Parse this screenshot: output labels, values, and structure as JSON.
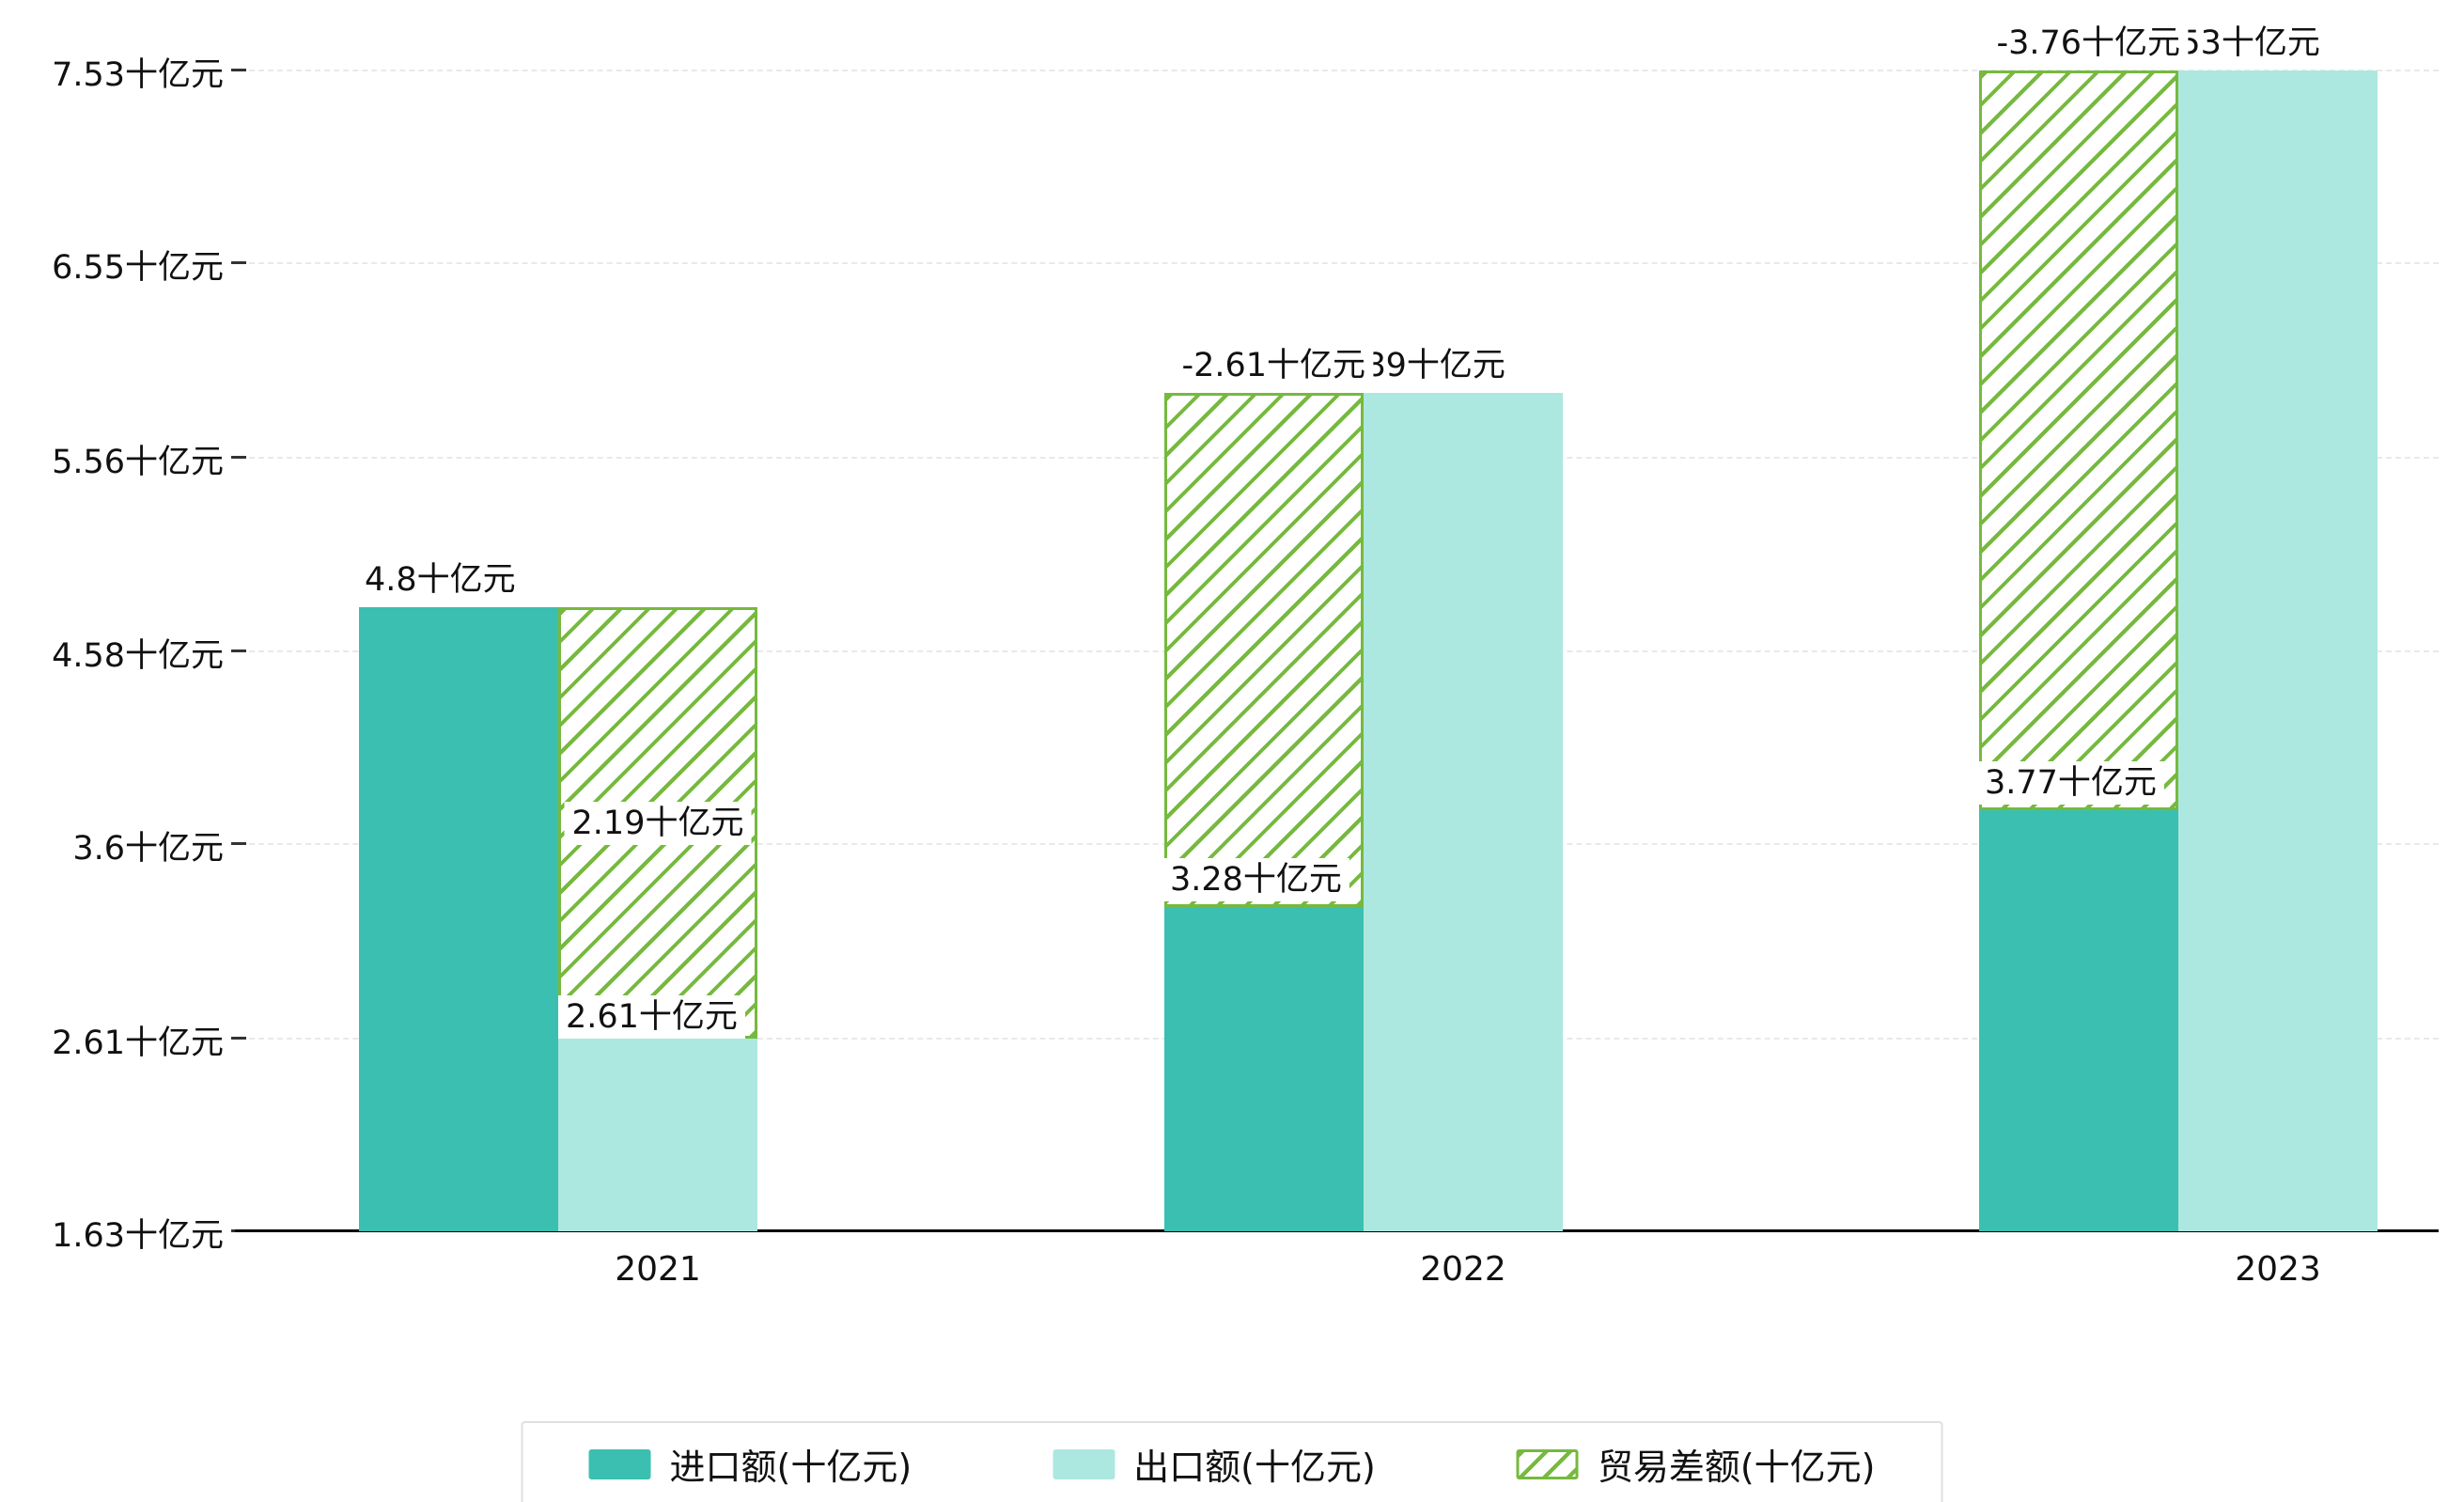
{
  "page": {
    "background": "#ffffff"
  },
  "chart_data": {
    "type": "bar",
    "title": "",
    "categories": [
      "2021",
      "2022",
      "2023"
    ],
    "series": [
      {
        "name": "进口额(十亿元)",
        "values": [
          4.8,
          3.28,
          3.77
        ],
        "labels": [
          "4.8十亿元",
          "3.28十亿元",
          "3.77十亿元"
        ],
        "color": "#3BBFB1",
        "style": "solid"
      },
      {
        "name": "出口额(十亿元)",
        "values": [
          2.61,
          5.89,
          7.53
        ],
        "labels": [
          "2.61十亿元",
          "5.89十亿元",
          "7.53十亿元"
        ],
        "color": "#ACE8E0",
        "style": "solid"
      },
      {
        "name": "贸易差额(十亿元)",
        "values": [
          2.19,
          -2.61,
          -3.76
        ],
        "labels": [
          "2.19十亿元",
          "-2.61十亿元",
          "-3.76十亿元"
        ],
        "color": "#76B93E",
        "style": "hatched",
        "render": "floating bar spanning between import top and export top, drawn over the shorter bar"
      }
    ],
    "y_axis": {
      "min": 1.63,
      "max": 7.53,
      "tick_values": [
        1.63,
        2.61,
        3.6,
        4.58,
        5.56,
        6.55,
        7.53
      ],
      "tick_labels": [
        "1.63十亿元",
        "2.61十亿元",
        "3.6十亿元",
        "4.58十亿元",
        "5.56十亿元",
        "6.55十亿元",
        "7.53十亿元"
      ]
    },
    "xlabel": "",
    "ylabel": "",
    "grid": "dashed-horizontal",
    "legend_position": "bottom-center"
  }
}
